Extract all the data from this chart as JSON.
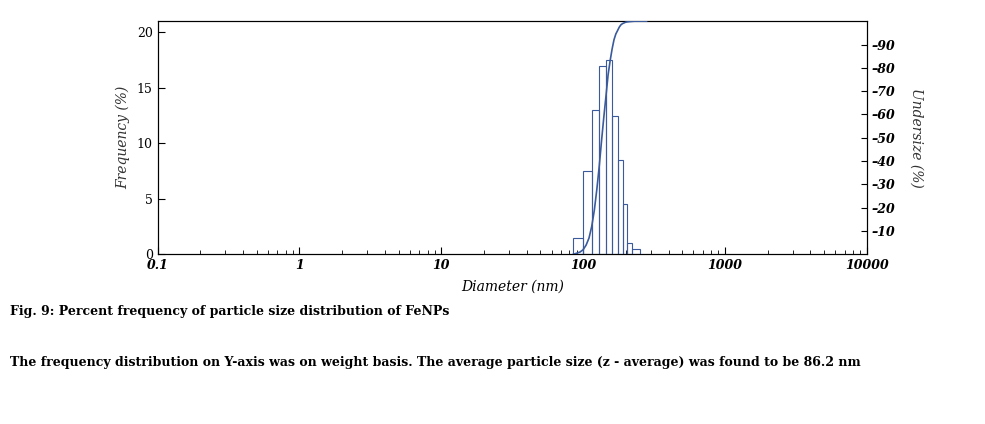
{
  "title": "",
  "xlabel": "Diameter (nm)",
  "ylabel_left": "Frequency (%)",
  "ylabel_right": "Undersize (%)",
  "caption_line1": "Fig. 9: Percent frequency of particle size distribution of FeNPs",
  "caption_line2": "The frequency distribution on Y-axis was on weight basis. The average particle size (z - average) was found to be 86.2 nm",
  "bar_lefts": [
    85,
    100,
    115,
    130,
    145,
    160,
    175,
    190,
    205,
    220,
    250,
    300
  ],
  "bar_rights": [
    100,
    115,
    130,
    145,
    160,
    175,
    190,
    205,
    220,
    250,
    300,
    350
  ],
  "bar_heights": [
    1.5,
    7.5,
    13.0,
    17.0,
    17.5,
    12.5,
    8.5,
    4.5,
    1.0,
    0.5,
    0.0,
    0.0
  ],
  "cumulative_x": [
    85,
    90,
    95,
    100,
    105,
    110,
    115,
    120,
    125,
    130,
    135,
    140,
    145,
    150,
    155,
    160,
    165,
    170,
    175,
    180,
    185,
    190,
    195,
    200,
    210,
    230,
    280
  ],
  "cumulative_y": [
    0,
    0.5,
    1,
    2,
    4,
    7,
    12,
    19,
    28,
    38,
    49,
    59,
    68,
    77,
    83,
    88,
    92,
    94.5,
    96,
    97.5,
    98.5,
    99,
    99.3,
    99.6,
    99.8,
    100,
    100
  ],
  "bar_color": "#3a5a9c",
  "line_color": "#3a5a9c",
  "xlim_log": [
    0.1,
    10000
  ],
  "ylim_left": [
    0,
    21
  ],
  "ylim_right": [
    0,
    100
  ],
  "yticks_left": [
    0,
    5,
    10,
    15,
    20
  ],
  "yticks_right": [
    10,
    20,
    30,
    40,
    50,
    60,
    70,
    80,
    90
  ],
  "xtick_labels": [
    "0.1",
    "1",
    "10",
    "100",
    "1000",
    "10000"
  ],
  "xtick_values": [
    0.1,
    1,
    10,
    100,
    1000,
    10000
  ],
  "bg_color": "#ffffff",
  "spine_color": "#000000",
  "font_size_ticks": 9,
  "font_size_labels": 10,
  "font_size_caption1": 9,
  "font_size_caption2": 9
}
